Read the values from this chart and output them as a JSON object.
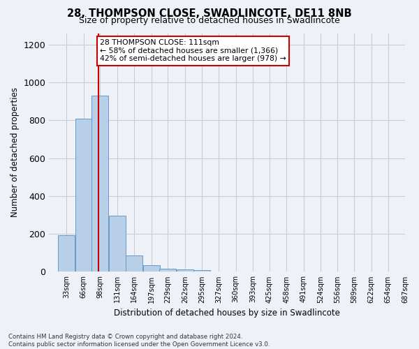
{
  "title": "28, THOMPSON CLOSE, SWADLINCOTE, DE11 8NB",
  "subtitle": "Size of property relative to detached houses in Swadlincote",
  "xlabel": "Distribution of detached houses by size in Swadlincote",
  "ylabel": "Number of detached properties",
  "bar_color": "#b8cfe8",
  "bar_edge_color": "#6699cc",
  "bar_heights": [
    193,
    810,
    930,
    295,
    85,
    35,
    18,
    12,
    8,
    0,
    0,
    0,
    0,
    0,
    0,
    0,
    0,
    0,
    0,
    0
  ],
  "bin_labels": [
    "33sqm",
    "66sqm",
    "98sqm",
    "131sqm",
    "164sqm",
    "197sqm",
    "229sqm",
    "262sqm",
    "295sqm",
    "327sqm",
    "360sqm",
    "393sqm",
    "425sqm",
    "458sqm",
    "491sqm",
    "524sqm",
    "556sqm",
    "589sqm",
    "622sqm",
    "654sqm",
    "687sqm"
  ],
  "bin_left_edges": [
    33,
    66,
    98,
    131,
    164,
    197,
    229,
    262,
    295,
    327,
    360,
    393,
    425,
    458,
    491,
    524,
    556,
    589,
    622,
    654
  ],
  "bin_width": 33,
  "vline_x": 111,
  "ylim": [
    0,
    1260
  ],
  "yticks": [
    0,
    200,
    400,
    600,
    800,
    1000,
    1200
  ],
  "xlim_left": 16,
  "xlim_right": 704,
  "annotation_title": "28 THOMPSON CLOSE: 111sqm",
  "annotation_line1": "← 58% of detached houses are smaller (1,366)",
  "annotation_line2": "42% of semi-detached houses are larger (978) →",
  "annotation_box_facecolor": "#ffffff",
  "annotation_box_edgecolor": "#cc0000",
  "vline_color": "#cc0000",
  "grid_color": "#cccccc",
  "footer_line1": "Contains HM Land Registry data © Crown copyright and database right 2024.",
  "footer_line2": "Contains public sector information licensed under the Open Government Licence v3.0.",
  "background_color": "#eef2f8"
}
